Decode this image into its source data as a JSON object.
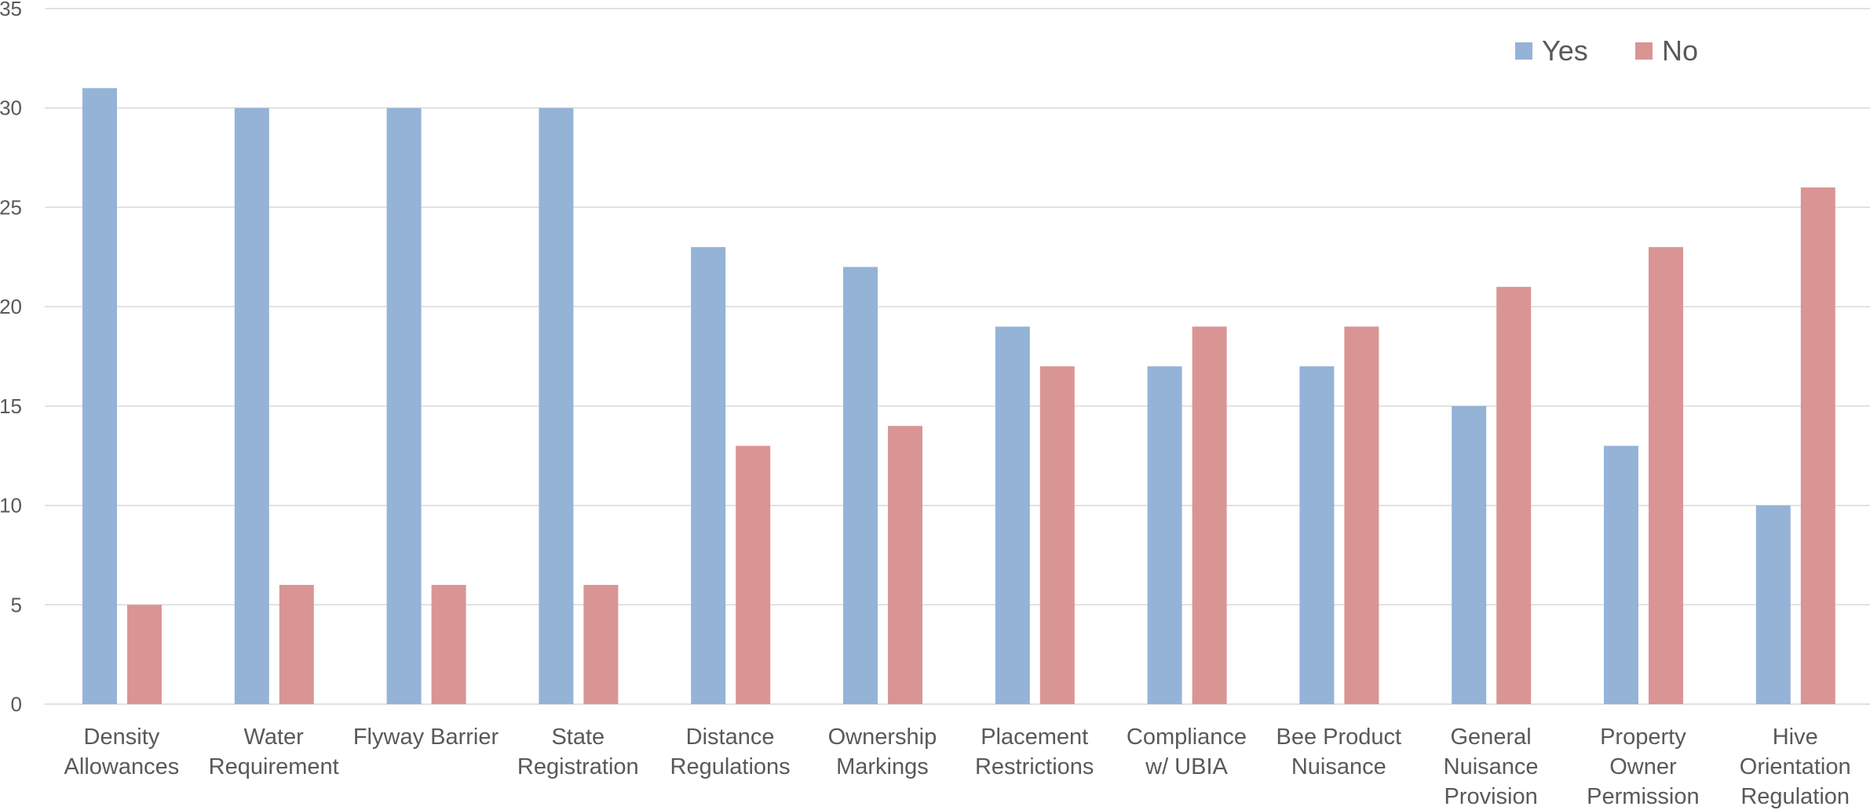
{
  "chart_data": {
    "type": "bar",
    "title": "",
    "xlabel": "",
    "ylabel": "",
    "ylim": [
      0,
      35
    ],
    "yticks": [
      0,
      5,
      10,
      15,
      20,
      25,
      30,
      35
    ],
    "grid": true,
    "legend_position": "top-right",
    "categories": [
      [
        "Density",
        "Allowances"
      ],
      [
        "Water",
        "Requirement"
      ],
      [
        "Flyway Barrier"
      ],
      [
        "State",
        "Registration"
      ],
      [
        "Distance",
        "Regulations"
      ],
      [
        "Ownership",
        "Markings"
      ],
      [
        "Placement",
        "Restrictions"
      ],
      [
        "Compliance",
        "w/ UBIA"
      ],
      [
        "Bee Product",
        "Nuisance"
      ],
      [
        "General",
        "Nuisance",
        "Provision"
      ],
      [
        "Property",
        "Owner",
        "Permission"
      ],
      [
        "Hive",
        "Orientation",
        "Regulation"
      ]
    ],
    "series": [
      {
        "name": "Yes",
        "color": "#95b3d7",
        "values": [
          31,
          30,
          30,
          30,
          23,
          22,
          19,
          17,
          17,
          15,
          13,
          10
        ]
      },
      {
        "name": "No",
        "color": "#d99594",
        "values": [
          5,
          6,
          6,
          6,
          13,
          14,
          17,
          19,
          19,
          21,
          23,
          26
        ]
      }
    ]
  }
}
